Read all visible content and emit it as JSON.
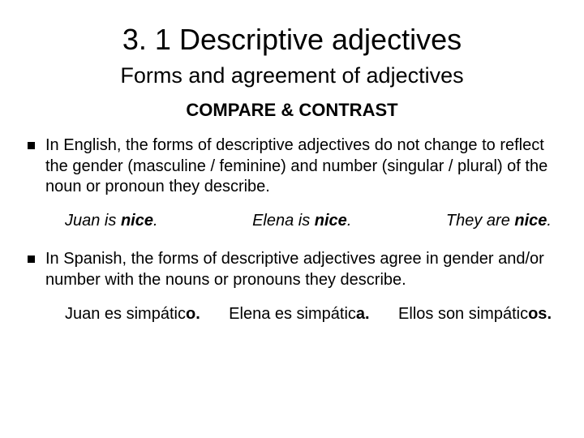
{
  "colors": {
    "background": "#ffffff",
    "text": "#000000",
    "bullet": "#000000"
  },
  "fonts": {
    "family": "Arial",
    "title_size_pt": 36,
    "subtitle_size_pt": 27,
    "heading_size_pt": 22,
    "body_size_pt": 20
  },
  "title": "3. 1 Descriptive adjectives",
  "subtitle": "Forms and agreement of adjectives",
  "section_heading": "COMPARE & CONTRAST",
  "bullets": [
    {
      "text": "In English, the forms of descriptive adjectives do not change to reflect the gender (masculine / feminine) and number (singular / plural) of the noun or pronoun they describe.",
      "examples": [
        {
          "plain": "Juan is ",
          "emph": "nice",
          "emph_style": "bold-italic",
          "tail": "."
        },
        {
          "plain": "Elena is ",
          "emph": "nice",
          "emph_style": "bold-italic",
          "tail": "."
        },
        {
          "plain": "They are ",
          "emph": "nice",
          "emph_style": "bold-italic",
          "tail": "."
        }
      ]
    },
    {
      "text": "In Spanish, the forms of descriptive adjectives agree in gender and/or number with the nouns or pronouns they describe.",
      "examples": [
        {
          "plain": "Juan es simpátic",
          "emph": "o",
          "emph_style": "bold",
          "tail": "."
        },
        {
          "plain": "Elena es simpátic",
          "emph": "a",
          "emph_style": "bold",
          "tail": "."
        },
        {
          "plain": "Ellos son simpátic",
          "emph": "os",
          "emph_style": "bold",
          "tail": "."
        }
      ]
    }
  ]
}
